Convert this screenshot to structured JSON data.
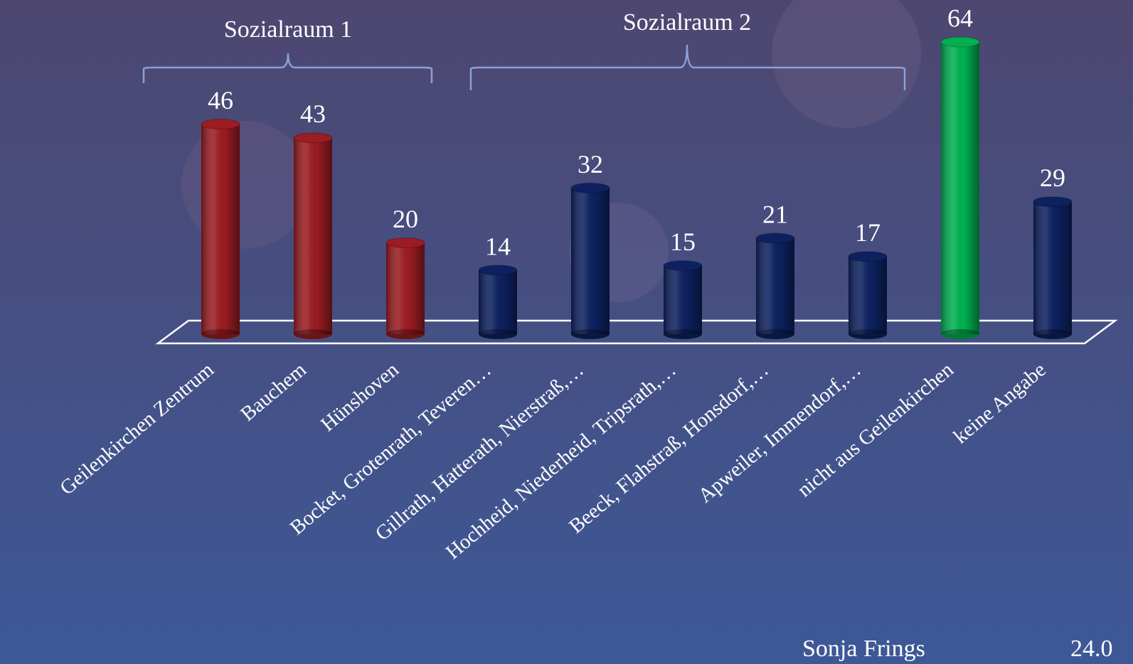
{
  "chart_data": {
    "type": "bar",
    "categories": [
      "Geilenkirchen Zentrum",
      "Bauchem",
      "Hünshoven",
      "Bocket, Grotenrath, Teveren…",
      "Gillrath, Hatterath, Nierstraß,…",
      "Hochheid, Niederheid, Tripsrath,…",
      "Beeck, Flahstraß, Honsdorf,…",
      "Apweiler, Immendorf,…",
      "nicht aus Geilenkirchen",
      "keine Angabe"
    ],
    "values": [
      46,
      43,
      20,
      14,
      32,
      15,
      21,
      17,
      64,
      29
    ],
    "colors": [
      "#9b1c22",
      "#9b1c22",
      "#9b1c22",
      "#0d2160",
      "#0d2160",
      "#0d2160",
      "#0d2160",
      "#0d2160",
      "#00b050",
      "#0d2160"
    ],
    "annotations": [
      {
        "text": "Sozialraum 1"
      },
      {
        "text": "Sozialraum 2"
      }
    ],
    "footer": {
      "author": "Sonja Frings",
      "date": "24.0"
    }
  }
}
